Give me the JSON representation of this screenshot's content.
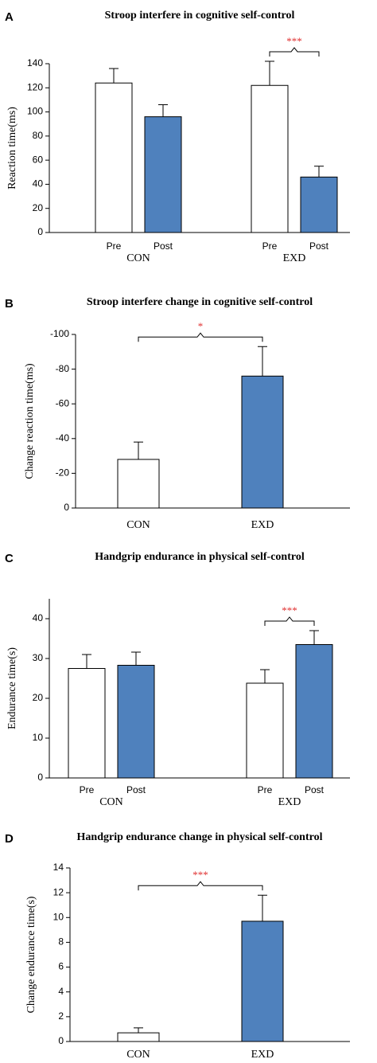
{
  "chart_data": [
    {
      "type": "grouped_bar",
      "panel_label": "A",
      "title": "Stroop interfere in cognitive self-control",
      "y_label": "Reaction time(ms)",
      "categories": [
        "CON",
        "EXD"
      ],
      "series": [
        {
          "name": "Pre",
          "color": "#ffffff",
          "values": [
            124,
            122
          ],
          "errors": [
            12,
            20
          ]
        },
        {
          "name": "Post",
          "color": "#4f81bd",
          "values": [
            96,
            46
          ],
          "errors": [
            10,
            9
          ]
        }
      ],
      "ylim": [
        0,
        140
      ],
      "yticks": [
        0,
        20,
        40,
        60,
        80,
        100,
        120,
        140
      ],
      "significance": "***"
    },
    {
      "type": "bar",
      "panel_label": "B",
      "title": "Stroop interfere change in cognitive self-control",
      "y_label": "Change reaction time(ms)",
      "categories": [
        "CON",
        "EXD"
      ],
      "values": [
        -28,
        -76
      ],
      "errors": [
        10,
        17
      ],
      "colors": [
        "#ffffff",
        "#4f81bd"
      ],
      "ylim": [
        0,
        -100
      ],
      "yticks": [
        0,
        -20,
        -40,
        -60,
        -80,
        -100
      ],
      "significance": "*"
    },
    {
      "type": "grouped_bar",
      "panel_label": "C",
      "title": "Handgrip endurance in physical self-control",
      "y_label": "Endurance time(s)",
      "categories": [
        "CON",
        "EXD"
      ],
      "series": [
        {
          "name": "Pre",
          "color": "#ffffff",
          "values": [
            27.5,
            23.8
          ],
          "errors": [
            3.5,
            3.4
          ]
        },
        {
          "name": "Post",
          "color": "#4f81bd",
          "values": [
            28.3,
            33.5
          ],
          "errors": [
            3.3,
            3.5
          ]
        }
      ],
      "ylim": [
        0,
        45
      ],
      "yticks": [
        0,
        10,
        20,
        30,
        40
      ],
      "significance": "***"
    },
    {
      "type": "bar",
      "panel_label": "D",
      "title": "Handgrip endurance change in physical self-control",
      "y_label": "Change endurance time(s)",
      "categories": [
        "CON",
        "EXD"
      ],
      "values": [
        0.7,
        9.7
      ],
      "errors": [
        0.4,
        2.1
      ],
      "colors": [
        "#ffffff",
        "#4f81bd"
      ],
      "ylim": [
        0,
        14
      ],
      "yticks": [
        0,
        2,
        4,
        6,
        8,
        10,
        12,
        14
      ],
      "significance": "***"
    }
  ]
}
